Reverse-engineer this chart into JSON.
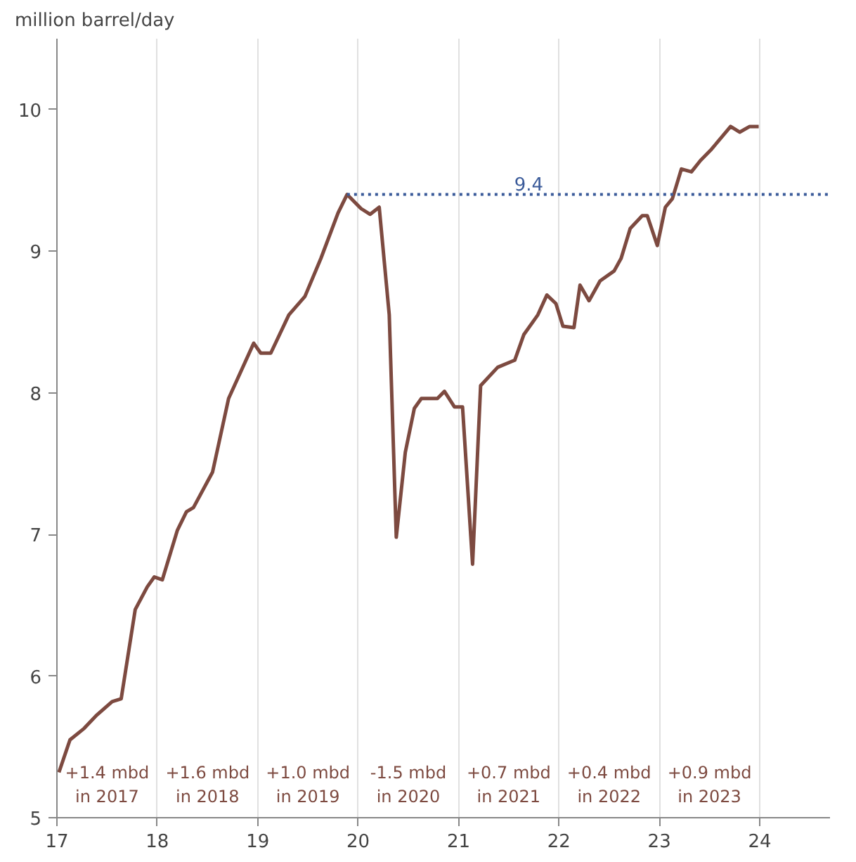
{
  "chart_data": {
    "type": "line",
    "ylabel": "million barrel/day",
    "xlim": [
      17,
      24.7
    ],
    "ylim": [
      5,
      10.5
    ],
    "xticks": [
      17,
      18,
      19,
      20,
      21,
      22,
      23,
      24
    ],
    "yticks": [
      5,
      6,
      7,
      8,
      9,
      10
    ],
    "grid": "x",
    "line_style": "solid",
    "series": [
      {
        "color": "#7d4a40",
        "x": [
          17.02,
          17.13,
          17.27,
          17.39,
          17.55,
          17.64,
          17.78,
          17.9,
          17.97,
          18.05,
          18.2,
          18.29,
          18.36,
          18.55,
          18.71,
          18.96,
          19.03,
          19.13,
          19.31,
          19.47,
          19.63,
          19.8,
          19.89,
          20.03,
          20.12,
          20.21,
          20.31,
          20.38,
          20.47,
          20.56,
          20.63,
          20.79,
          20.86,
          20.96,
          21.04,
          21.14,
          21.22,
          21.39,
          21.56,
          21.65,
          21.79,
          21.88,
          21.97,
          22.04,
          22.15,
          22.21,
          22.3,
          22.41,
          22.55,
          22.62,
          22.71,
          22.83,
          22.88,
          22.98,
          23.06,
          23.13,
          23.22,
          23.32,
          23.41,
          23.52,
          23.71,
          23.8,
          23.9,
          23.99
        ],
        "values": [
          5.32,
          5.55,
          5.63,
          5.72,
          5.82,
          5.84,
          6.47,
          6.63,
          6.7,
          6.68,
          7.03,
          7.16,
          7.19,
          7.44,
          7.96,
          8.35,
          8.28,
          8.28,
          8.55,
          8.68,
          8.95,
          9.27,
          9.4,
          9.3,
          9.26,
          9.31,
          8.55,
          6.98,
          7.58,
          7.89,
          7.96,
          7.96,
          8.01,
          7.9,
          7.9,
          6.79,
          8.05,
          8.18,
          8.23,
          8.41,
          8.55,
          8.69,
          8.63,
          8.47,
          8.46,
          8.76,
          8.65,
          8.79,
          8.86,
          8.95,
          9.16,
          9.25,
          9.25,
          9.04,
          9.31,
          9.37,
          9.58,
          9.56,
          9.64,
          9.72,
          9.88,
          9.84,
          9.88,
          9.88
        ]
      },
      {
        "color": "#3b5b9a",
        "line_style": "dotted",
        "x": [
          19.89,
          24.7
        ],
        "values": [
          9.4,
          9.4
        ]
      }
    ],
    "annotations": [
      {
        "text": "9.4",
        "x": 21.7,
        "y": 9.4
      },
      "+1.4 mbd\nin 2017",
      "+1.6 mbd\nin 2018",
      "+1.0 mbd\nin 2019",
      "-1.5 mbd\nin 2020",
      "+0.7 mbd\nin 2021",
      "+0.4 mbd\nin 2022",
      "+0.9 mbd\nin 2023"
    ]
  }
}
